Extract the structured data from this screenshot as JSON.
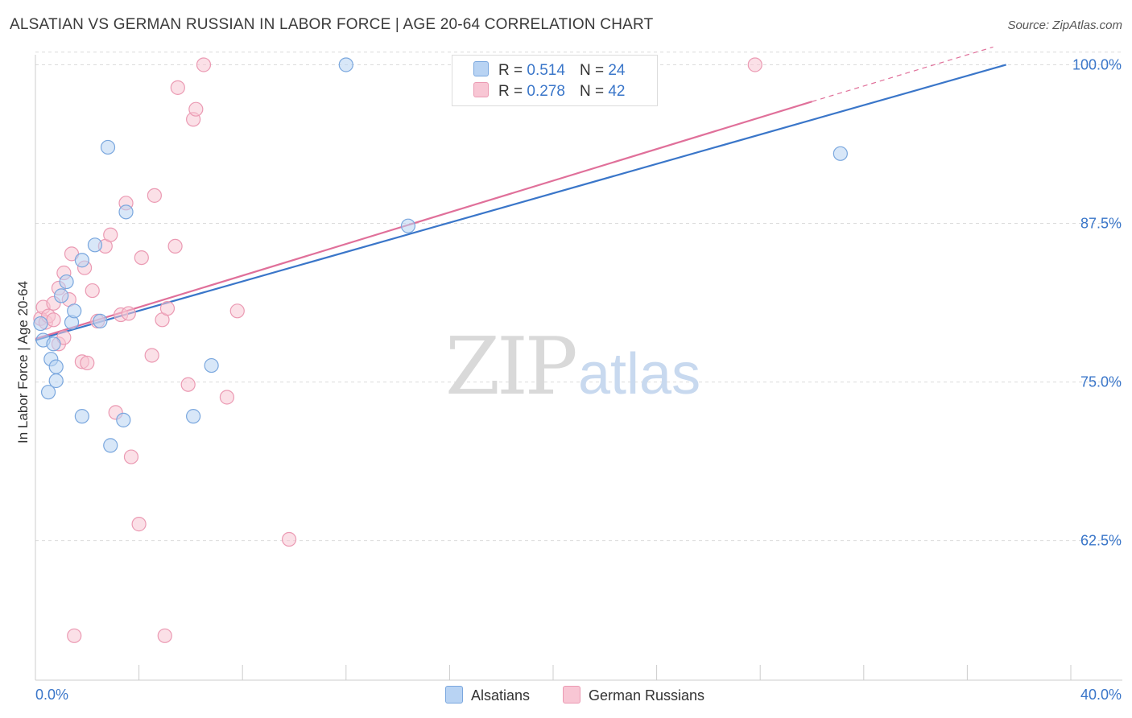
{
  "title": "ALSATIAN VS GERMAN RUSSIAN IN LABOR FORCE | AGE 20-64 CORRELATION CHART",
  "source": "Source: ZipAtlas.com",
  "watermark": {
    "zip": "ZIP",
    "atlas": "atlas"
  },
  "legend_top": {
    "rows": [
      {
        "r_label": "R =",
        "r_value": "0.514",
        "n_label": "N =",
        "n_value": "24"
      },
      {
        "r_label": "R =",
        "r_value": "0.278",
        "n_label": "N =",
        "n_value": "42"
      }
    ]
  },
  "legend_bottom": {
    "series1": "Alsatians",
    "series2": "German Russians"
  },
  "colors": {
    "alsatian_fill": "#b8d3f3",
    "alsatian_stroke": "#7aa7de",
    "alsatian_line": "#3a76c9",
    "german_fill": "#f8c6d4",
    "german_stroke": "#eb9ab3",
    "german_line": "#e0709a",
    "tick_label": "#3a76c9",
    "grid": "#dcdcdc"
  },
  "chart_data": {
    "type": "scatter",
    "title": "ALSATIAN VS GERMAN RUSSIAN IN LABOR FORCE | AGE 20-64 CORRELATION CHART",
    "xlabel": "",
    "ylabel": "In Labor Force | Age 20-64",
    "xlim": [
      0,
      40
    ],
    "ylim": [
      51.5,
      101.3
    ],
    "x_tick_labels": [
      "0.0%",
      "40.0%"
    ],
    "y_ticks": [
      62.5,
      75.0,
      87.5,
      100.0
    ],
    "y_tick_labels": [
      "62.5%",
      "75.0%",
      "87.5%",
      "100.0%"
    ],
    "series": [
      {
        "name": "Alsatians",
        "r": 0.514,
        "n": 24,
        "points": [
          [
            0.2,
            79.6
          ],
          [
            0.3,
            78.3
          ],
          [
            0.6,
            76.8
          ],
          [
            0.7,
            78.0
          ],
          [
            0.8,
            76.2
          ],
          [
            0.5,
            74.2
          ],
          [
            0.8,
            75.1
          ],
          [
            1.0,
            81.8
          ],
          [
            1.2,
            82.9
          ],
          [
            1.4,
            79.7
          ],
          [
            1.5,
            80.6
          ],
          [
            1.8,
            84.6
          ],
          [
            2.3,
            85.8
          ],
          [
            2.5,
            79.8
          ],
          [
            1.8,
            72.3
          ],
          [
            2.8,
            93.5
          ],
          [
            2.9,
            70.0
          ],
          [
            3.4,
            72.0
          ],
          [
            3.5,
            88.4
          ],
          [
            6.1,
            72.3
          ],
          [
            6.8,
            76.3
          ],
          [
            12.0,
            100.0
          ],
          [
            14.4,
            87.3
          ],
          [
            31.1,
            93.0
          ]
        ],
        "trend": {
          "x": [
            0,
            37.5
          ],
          "y": [
            78.3,
            100.0
          ]
        }
      },
      {
        "name": "German Russians",
        "r": 0.278,
        "n": 42,
        "points": [
          [
            0.2,
            80.0
          ],
          [
            0.3,
            80.9
          ],
          [
            0.4,
            79.7
          ],
          [
            0.5,
            80.2
          ],
          [
            0.7,
            79.9
          ],
          [
            0.9,
            82.4
          ],
          [
            0.7,
            81.2
          ],
          [
            0.9,
            78.0
          ],
          [
            1.1,
            83.6
          ],
          [
            1.3,
            81.5
          ],
          [
            1.1,
            78.5
          ],
          [
            1.4,
            85.1
          ],
          [
            1.8,
            76.6
          ],
          [
            2.0,
            76.5
          ],
          [
            2.2,
            82.2
          ],
          [
            1.9,
            84.0
          ],
          [
            2.4,
            79.8
          ],
          [
            2.7,
            85.7
          ],
          [
            2.9,
            86.6
          ],
          [
            3.1,
            72.6
          ],
          [
            3.3,
            80.3
          ],
          [
            3.6,
            80.4
          ],
          [
            3.5,
            89.1
          ],
          [
            3.7,
            69.1
          ],
          [
            4.0,
            63.8
          ],
          [
            4.1,
            84.8
          ],
          [
            4.5,
            77.1
          ],
          [
            4.6,
            89.7
          ],
          [
            4.9,
            79.9
          ],
          [
            5.1,
            80.8
          ],
          [
            5.4,
            85.7
          ],
          [
            5.5,
            98.2
          ],
          [
            5.9,
            74.8
          ],
          [
            6.1,
            95.7
          ],
          [
            6.2,
            96.5
          ],
          [
            6.5,
            100.0
          ],
          [
            7.4,
            73.8
          ],
          [
            7.8,
            80.6
          ],
          [
            9.8,
            62.6
          ],
          [
            1.5,
            55.0
          ],
          [
            5.0,
            55.0
          ],
          [
            27.8,
            100.0
          ]
        ],
        "trend": {
          "x": [
            0,
            30.0
          ],
          "y": [
            78.4,
            97.1
          ],
          "dashed_to": {
            "x": 37.0,
            "y": 101.4
          }
        }
      }
    ]
  }
}
